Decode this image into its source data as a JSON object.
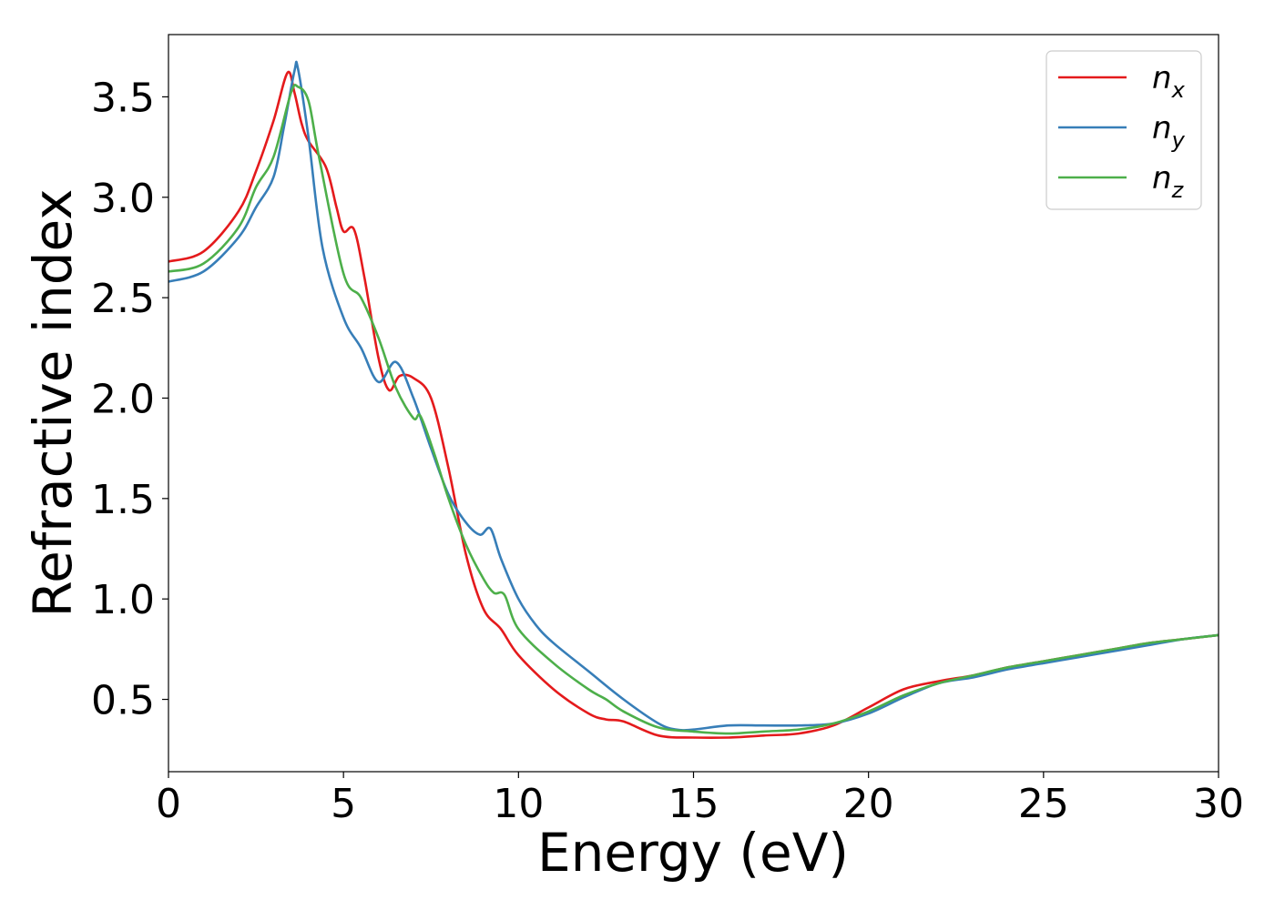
{
  "chart_data": {
    "type": "line",
    "title": "",
    "xlabel": "Energy (eV)",
    "ylabel": "Refractive index",
    "xlim": [
      0,
      30
    ],
    "ylim": [
      0.14,
      3.81
    ],
    "xticks": [
      0,
      5,
      10,
      15,
      20,
      25,
      30
    ],
    "xtick_labels": [
      "0",
      "5",
      "10",
      "15",
      "20",
      "25",
      "30"
    ],
    "yticks": [
      0.5,
      1.0,
      1.5,
      2.0,
      2.5,
      3.0,
      3.5
    ],
    "ytick_labels": [
      "0.5",
      "1.0",
      "1.5",
      "2.0",
      "2.5",
      "3.0",
      "3.5"
    ],
    "grid": false,
    "legend_position": "top-right",
    "series": [
      {
        "name": "n_x",
        "legend_base": "n",
        "legend_sub": "x",
        "color": "#e41a1c",
        "x": [
          0,
          1,
          2,
          2.5,
          3,
          3.4,
          3.6,
          3.8,
          4.0,
          4.5,
          4.8,
          5.0,
          5.3,
          5.6,
          6.0,
          6.3,
          6.6,
          7.0,
          7.5,
          8.0,
          8.5,
          9.0,
          9.5,
          10.0,
          11.0,
          12.0,
          12.5,
          13.0,
          14.0,
          15.0,
          16.0,
          17.0,
          18.0,
          19.0,
          20.0,
          21.0,
          22.0,
          23.0,
          24.0,
          25.0,
          26.0,
          27.0,
          28.0,
          29.0,
          30.0
        ],
        "y": [
          2.68,
          2.73,
          2.93,
          3.13,
          3.38,
          3.62,
          3.52,
          3.37,
          3.28,
          3.15,
          2.95,
          2.83,
          2.84,
          2.6,
          2.2,
          2.04,
          2.11,
          2.1,
          2.0,
          1.65,
          1.22,
          0.95,
          0.85,
          0.72,
          0.55,
          0.43,
          0.4,
          0.39,
          0.32,
          0.31,
          0.31,
          0.32,
          0.33,
          0.37,
          0.46,
          0.55,
          0.59,
          0.62,
          0.66,
          0.69,
          0.72,
          0.75,
          0.78,
          0.8,
          0.82
        ]
      },
      {
        "name": "n_y",
        "legend_base": "n",
        "legend_sub": "y",
        "color": "#377eb8",
        "x": [
          0,
          1,
          2,
          2.5,
          3,
          3.3,
          3.6,
          3.7,
          4.0,
          4.4,
          5.0,
          5.5,
          6.0,
          6.5,
          7.0,
          7.5,
          8.0,
          8.5,
          8.9,
          9.2,
          9.5,
          10.0,
          10.5,
          11.0,
          12.0,
          13.0,
          14.0,
          14.5,
          15.0,
          16.0,
          17.0,
          18.0,
          19.0,
          20.0,
          21.0,
          22.0,
          23.0,
          24.0,
          25.0,
          26.0,
          27.0,
          28.0,
          29.0,
          30.0
        ],
        "y": [
          2.58,
          2.63,
          2.8,
          2.95,
          3.1,
          3.35,
          3.63,
          3.64,
          3.3,
          2.75,
          2.4,
          2.25,
          2.08,
          2.18,
          2.0,
          1.75,
          1.52,
          1.38,
          1.32,
          1.35,
          1.2,
          1.0,
          0.87,
          0.78,
          0.64,
          0.5,
          0.38,
          0.35,
          0.35,
          0.37,
          0.37,
          0.37,
          0.38,
          0.43,
          0.51,
          0.58,
          0.61,
          0.65,
          0.68,
          0.71,
          0.74,
          0.77,
          0.8,
          0.82
        ]
      },
      {
        "name": "n_z",
        "legend_base": "n",
        "legend_sub": "z",
        "color": "#4daf4a",
        "x": [
          0,
          1,
          2,
          2.5,
          3,
          3.5,
          3.7,
          4.0,
          4.3,
          5.0,
          5.5,
          6.0,
          6.5,
          7.0,
          7.2,
          7.6,
          8.0,
          8.5,
          9.0,
          9.3,
          9.6,
          10.0,
          11.0,
          12.0,
          12.5,
          13.0,
          14.0,
          15.0,
          16.0,
          17.0,
          18.0,
          19.0,
          20.0,
          21.0,
          22.0,
          23.0,
          24.0,
          25.0,
          26.0,
          27.0,
          28.0,
          29.0,
          30.0
        ],
        "y": [
          2.63,
          2.67,
          2.85,
          3.05,
          3.2,
          3.52,
          3.55,
          3.48,
          3.2,
          2.62,
          2.5,
          2.3,
          2.05,
          1.9,
          1.91,
          1.72,
          1.5,
          1.27,
          1.1,
          1.03,
          1.02,
          0.85,
          0.68,
          0.55,
          0.5,
          0.44,
          0.36,
          0.34,
          0.33,
          0.34,
          0.35,
          0.38,
          0.44,
          0.52,
          0.58,
          0.62,
          0.66,
          0.69,
          0.72,
          0.75,
          0.78,
          0.8,
          0.82
        ]
      }
    ]
  }
}
